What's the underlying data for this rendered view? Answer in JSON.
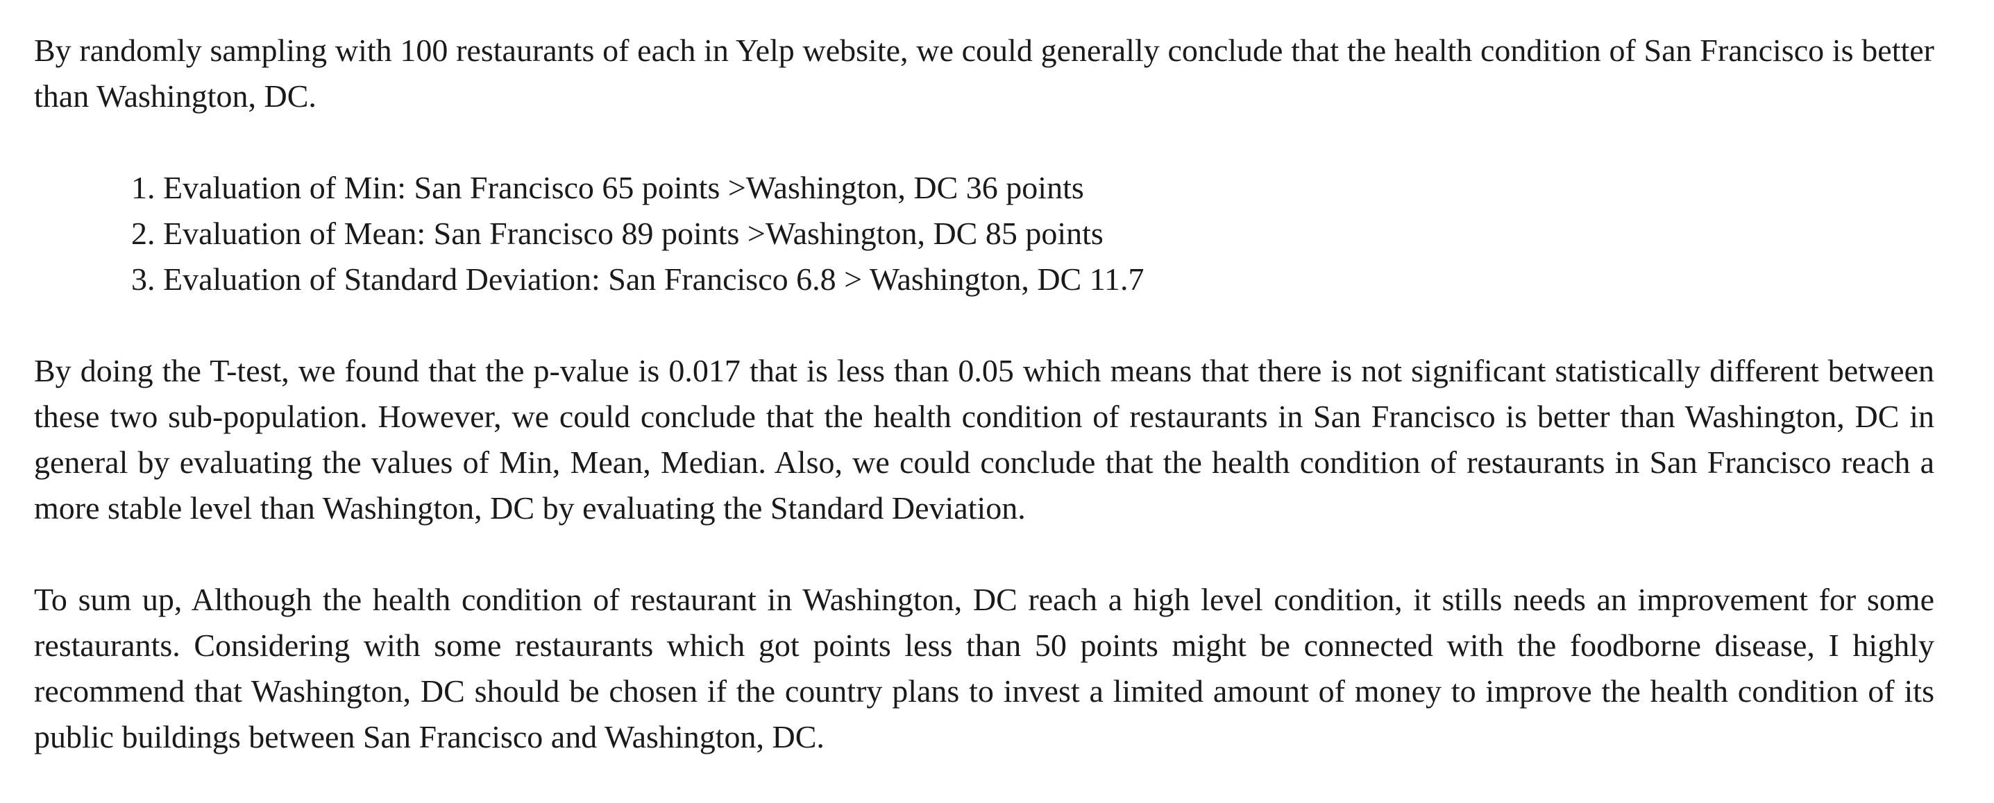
{
  "intro": "By randomly sampling with 100 restaurants of each in Yelp website, we could generally conclude that the health condition of San Francisco is better than Washington, DC.",
  "evaluations": [
    {
      "num": "1.",
      "text": " Evaluation of Min: San Francisco 65 points >Washington, DC 36 points"
    },
    {
      "num": "2.",
      "text": " Evaluation of Mean: San Francisco 89 points >Washington, DC 85 points"
    },
    {
      "num": "3.",
      "text": " Evaluation of Standard Deviation: San Francisco 6.8 > Washington, DC 11.7"
    }
  ],
  "ttest": "By doing the T-test, we found that the p-value is 0.017 that is less than 0.05 which means that there is not significant statistically different between these two sub-population. However, we could conclude that the health condition of restaurants in San Francisco is better than Washington, DC in general by evaluating the values of Min, Mean, Median. Also, we could conclude that the health condition of restaurants in San Francisco reach a more stable level than Washington, DC by evaluating the Standard Deviation.",
  "summary": "To sum up, Although the health condition of restaurant in Washington, DC reach a high level condition, it stills needs an improvement for some restaurants. Considering with some restaurants which got points less than 50 points might be connected with the foodborne disease, I highly recommend that Washington, DC should be chosen if the country plans to invest a limited amount of money to improve the health condition of its public buildings between San Francisco and Washington, DC."
}
